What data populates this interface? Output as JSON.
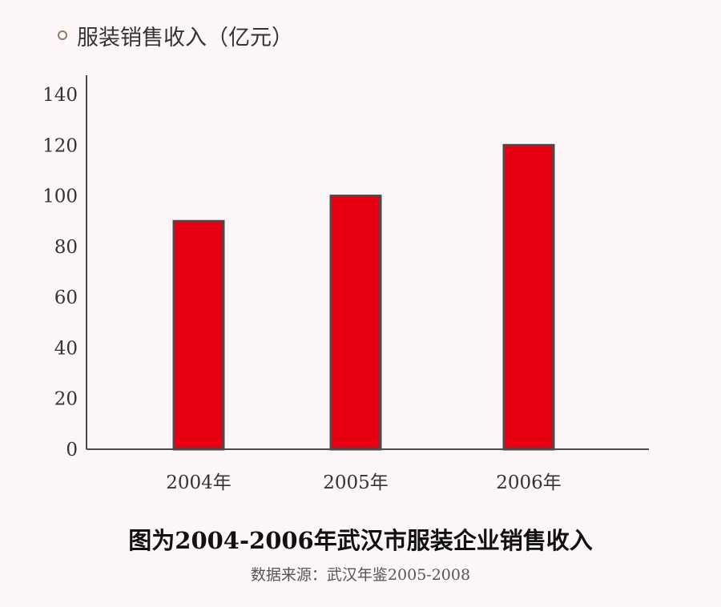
{
  "chart_data": {
    "type": "bar",
    "categories": [
      "2004年",
      "2005年",
      "2006年"
    ],
    "series": [
      {
        "name": "服装销售收入（亿元）",
        "values": [
          90,
          100,
          120
        ]
      }
    ],
    "yticks": [
      0,
      20,
      40,
      60,
      80,
      100,
      120,
      140
    ],
    "ylim": [
      0,
      140
    ],
    "grid": false,
    "legend_position": "top-left",
    "bar_color": "#e60012",
    "bar_border_color": "#4a4a4a"
  },
  "caption": {
    "title": "图为2004-2006年武汉市服装企业销售收入",
    "source": "数据来源：武汉年鉴2005-2008"
  }
}
